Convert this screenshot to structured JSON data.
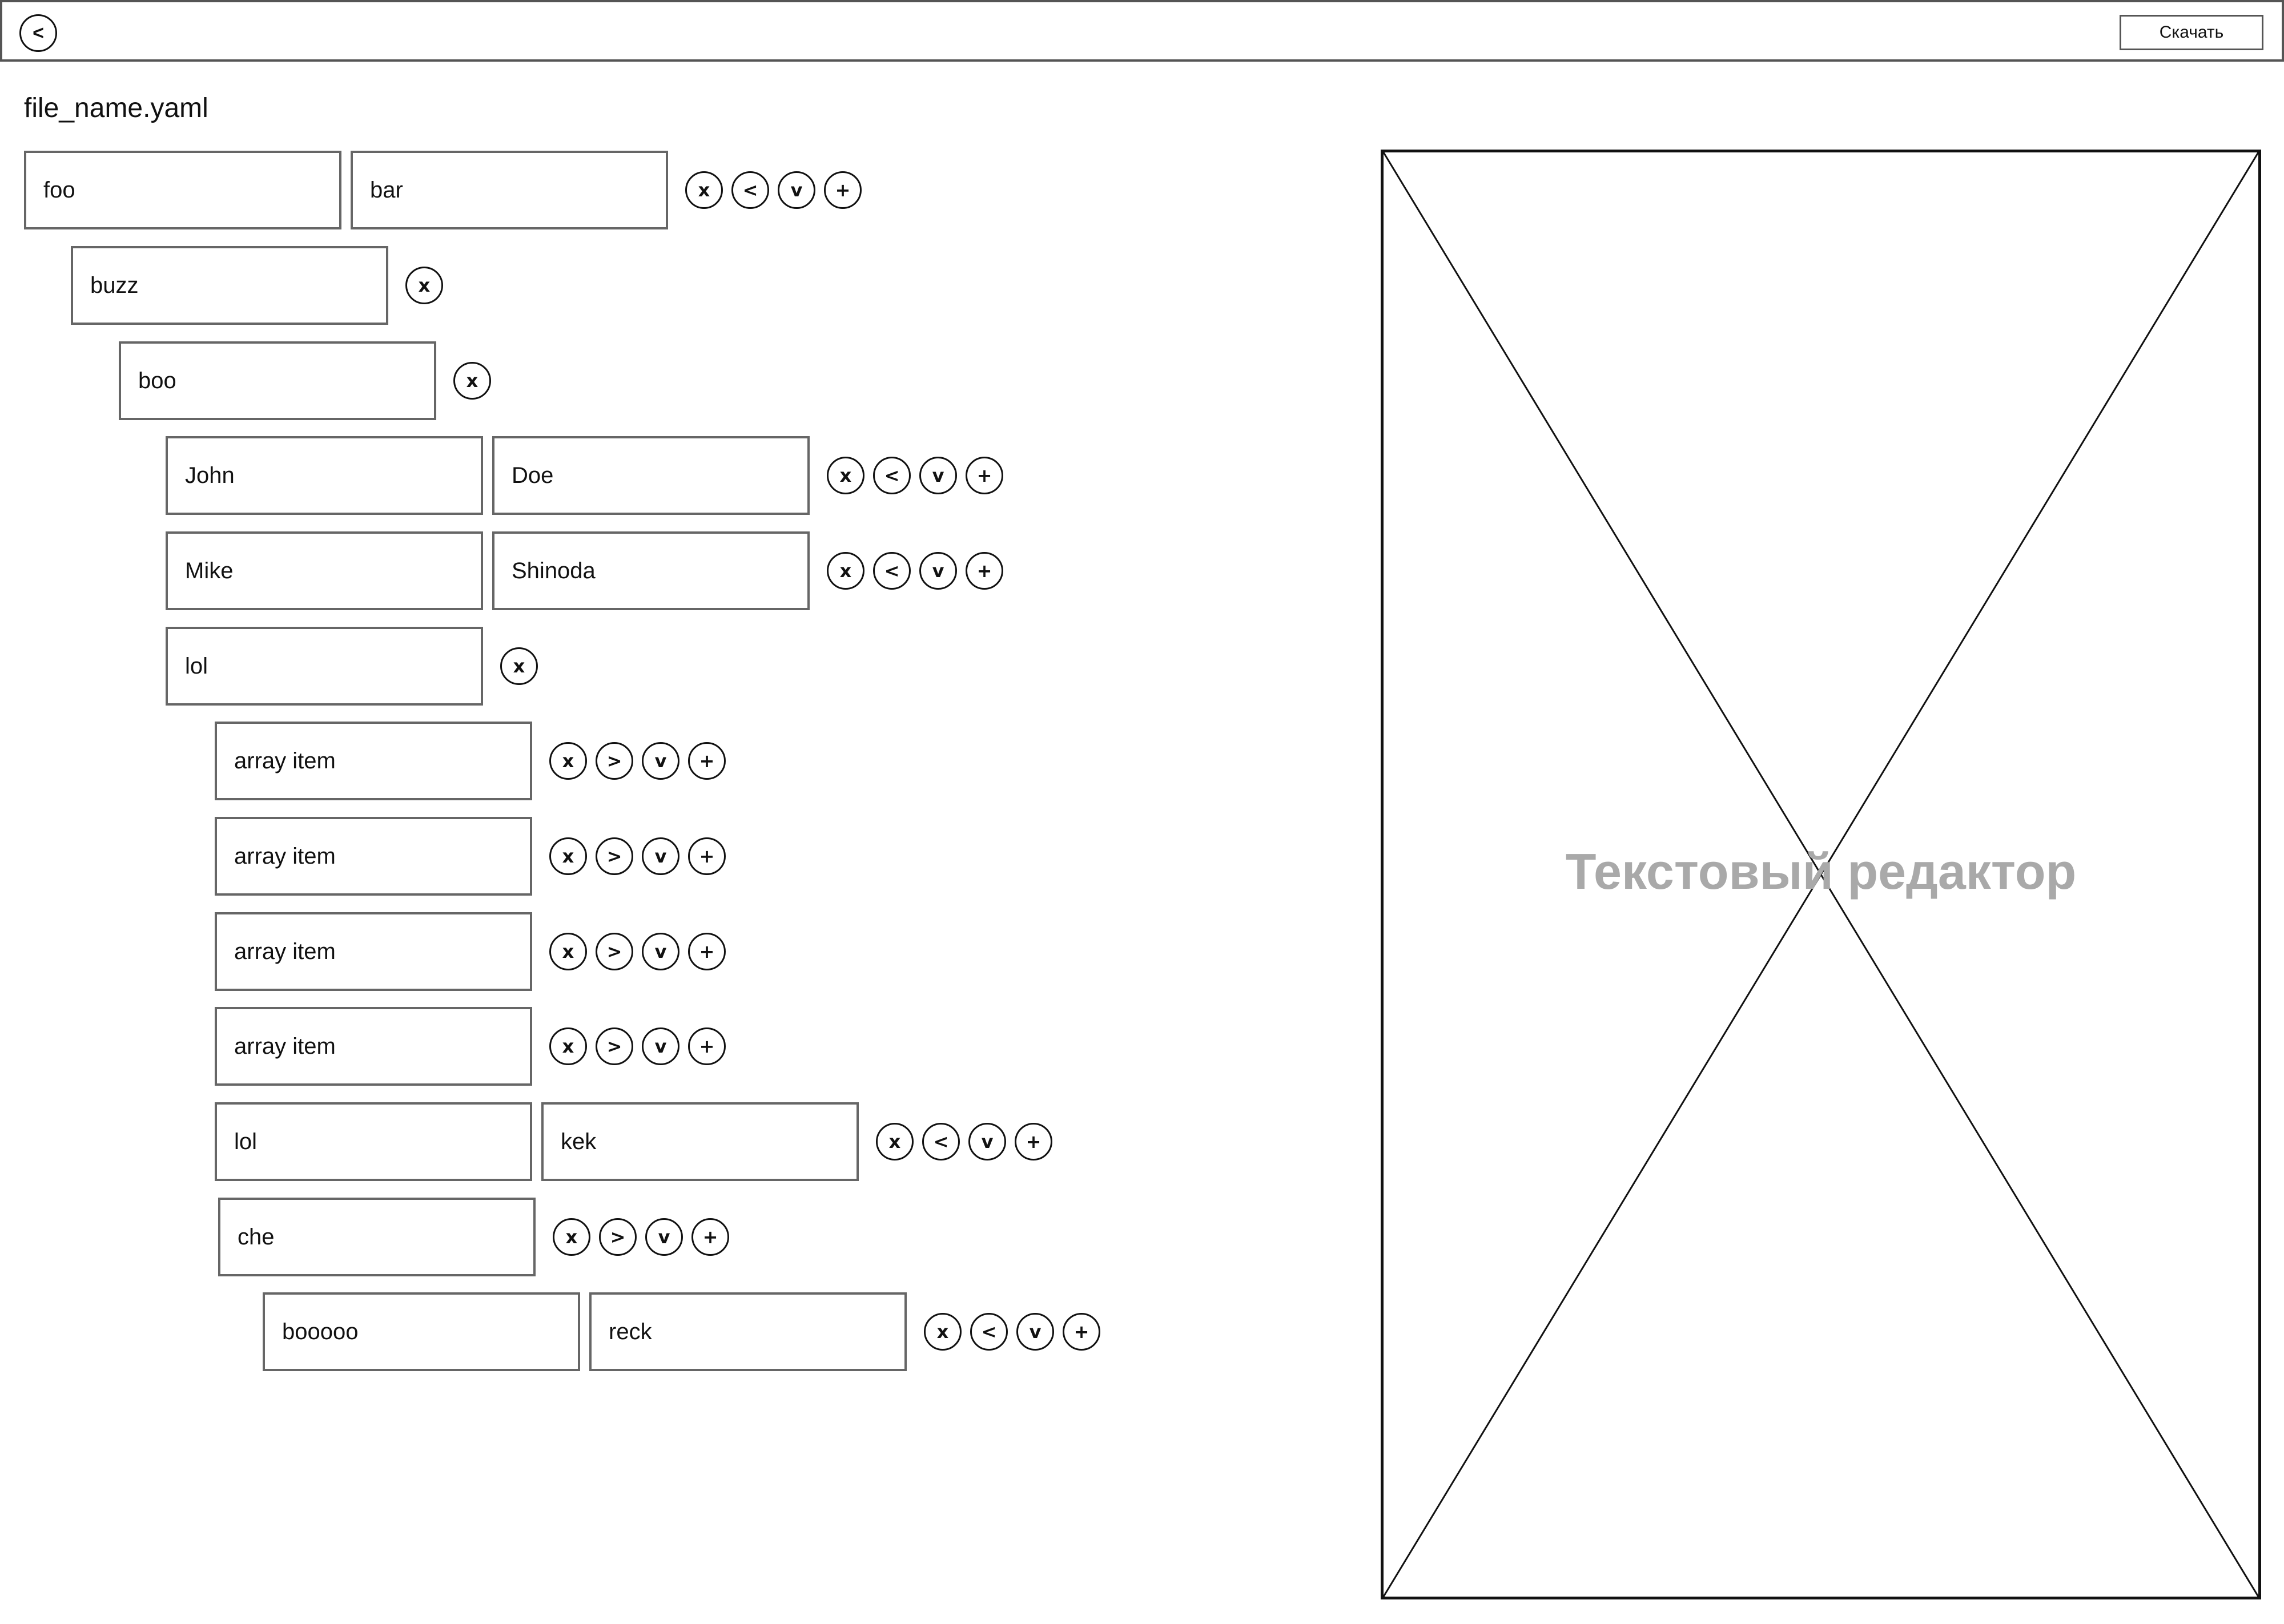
{
  "header": {
    "back_label": "<",
    "download_label": "Скачать"
  },
  "file_name": "file_name.yaml",
  "tree": [
    {
      "kind": "pair",
      "key": "foo",
      "value": "bar",
      "actions": [
        "x",
        "<",
        "v",
        "+"
      ]
    },
    {
      "kind": "key",
      "key": "buzz",
      "actions": [
        "x"
      ]
    },
    {
      "kind": "key",
      "key": "boo",
      "actions": [
        "x"
      ]
    },
    {
      "kind": "pair",
      "key": "John",
      "value": "Doe",
      "actions": [
        "x",
        "<",
        "v",
        "+"
      ]
    },
    {
      "kind": "pair",
      "key": "Mike",
      "value": "Shinoda",
      "actions": [
        "x",
        "<",
        "v",
        "+"
      ]
    },
    {
      "kind": "key",
      "key": "lol",
      "actions": [
        "x"
      ]
    },
    {
      "kind": "array-item",
      "key": "array item",
      "actions": [
        "x",
        ">",
        "v",
        "+"
      ]
    },
    {
      "kind": "array-item",
      "key": "array item",
      "actions": [
        "x",
        ">",
        "v",
        "+"
      ]
    },
    {
      "kind": "array-item",
      "key": "array item",
      "actions": [
        "x",
        ">",
        "v",
        "+"
      ]
    },
    {
      "kind": "array-item",
      "key": "array item",
      "actions": [
        "x",
        ">",
        "v",
        "+"
      ]
    },
    {
      "kind": "pair",
      "key": "lol",
      "value": "kek",
      "actions": [
        "x",
        "<",
        "v",
        "+"
      ]
    },
    {
      "kind": "array-item",
      "key": "che",
      "actions": [
        "x",
        ">",
        "v",
        "+"
      ]
    },
    {
      "kind": "pair",
      "key": "booooo",
      "value": "reck",
      "actions": [
        "x",
        "<",
        "v",
        "+"
      ]
    }
  ],
  "editor": {
    "placeholder_label": "Текстовый редактор"
  }
}
